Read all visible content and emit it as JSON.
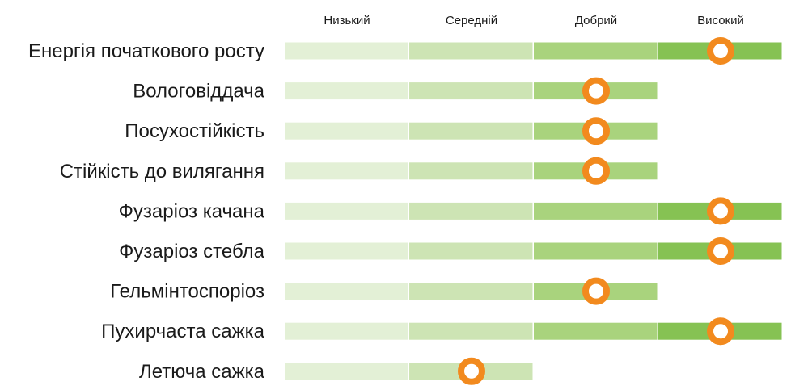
{
  "chart_data": {
    "type": "bar",
    "levels": [
      "Низький",
      "Середній",
      "Добрий",
      "Високий"
    ],
    "level_colors": [
      "#e3f0d6",
      "#cde4b4",
      "#a9d37d",
      "#86c253"
    ],
    "marker_color": "#f28a1e",
    "categories": [
      "Енергія початкового росту",
      "Вологовіддача",
      "Посухостійкість",
      "Стійкість до вилягання",
      "Фузаріоз качана",
      "Фузаріоз стебла",
      "Гельмінтоспоріоз",
      "Пухирчаста сажка",
      "Летюча сажка"
    ],
    "values": [
      3.5,
      2.5,
      2.5,
      2.5,
      3.5,
      3.5,
      2.5,
      3.5,
      1.5
    ]
  }
}
